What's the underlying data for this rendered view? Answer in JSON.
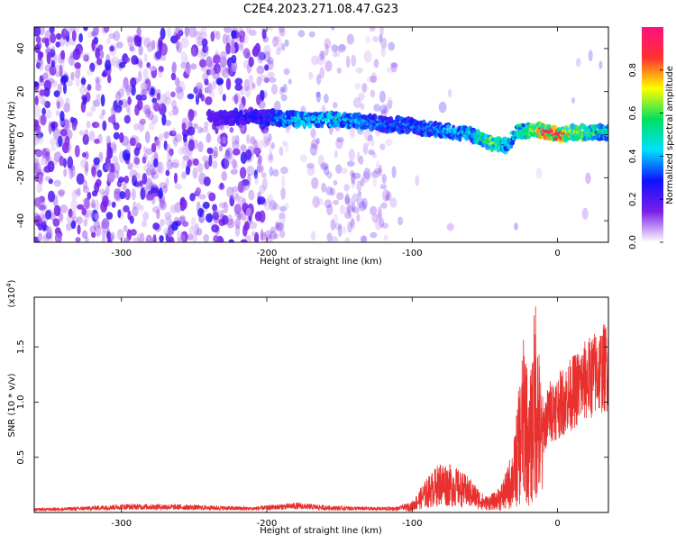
{
  "title": "C2E4.2023.271.08.47.G23",
  "colors": {
    "snr_line": "#e8312e",
    "spectrogram_base": "#7b1fe8"
  },
  "chart_data": [
    {
      "type": "heatmap",
      "xlabel": "Height of straight line (km)",
      "ylabel": "Frequency (Hz)",
      "xlim": [
        -360,
        35
      ],
      "ylim": [
        -50,
        50
      ],
      "x_ticks": [
        "-300",
        "-200",
        "-100",
        "0"
      ],
      "x_tick_values": [
        -300,
        -200,
        -100,
        0
      ],
      "y_ticks": [
        "-40",
        "-20",
        "0",
        "20",
        "40"
      ],
      "y_tick_values": [
        -40,
        -20,
        0,
        20,
        40
      ],
      "colorbar": {
        "label": "Normalized spectral amplitude",
        "range": [
          0,
          1
        ],
        "ticks": [
          "0.0",
          "0.2",
          "0.4",
          "0.6",
          "0.8"
        ],
        "tick_values": [
          0,
          0.2,
          0.4,
          0.6,
          0.8
        ],
        "colormap": [
          "#ffffff",
          "#7b1fe8",
          "#1010ff",
          "#00e0ff",
          "#00e060",
          "#ffff00",
          "#ff3030",
          "#ff1080"
        ]
      },
      "ridge": {
        "x": [
          -235,
          -200,
          -180,
          -150,
          -120,
          -100,
          -80,
          -60,
          -45,
          -35,
          -28,
          -20,
          -10,
          0,
          10,
          20,
          35
        ],
        "y": [
          8,
          8,
          7,
          7,
          5,
          4,
          2,
          0,
          -4,
          -5,
          1,
          2,
          2,
          0,
          1,
          1,
          1
        ],
        "amplitude": [
          0.2,
          0.3,
          0.45,
          0.45,
          0.35,
          0.35,
          0.4,
          0.45,
          0.65,
          0.45,
          0.5,
          0.6,
          0.9,
          0.95,
          0.7,
          0.6,
          0.5
        ]
      }
    },
    {
      "type": "line",
      "xlabel": "Height of straight line (km)",
      "ylabel": "SNR (10 * v/v)",
      "y_multiplier": "(x10",
      "y_multiplier_exp": "4",
      "y_multiplier_close": ")",
      "xlim": [
        -360,
        35
      ],
      "ylim": [
        0,
        1.95
      ],
      "x_ticks": [
        "-300",
        "-200",
        "-100",
        "0"
      ],
      "x_tick_values": [
        -300,
        -200,
        -100,
        0
      ],
      "y_ticks": [
        "0.5",
        "1.0",
        "1.5"
      ],
      "y_tick_values": [
        0.5,
        1.0,
        1.5
      ],
      "series": [
        {
          "x": [
            -360,
            -330,
            -300,
            -270,
            -240,
            -210,
            -180,
            -160,
            -130,
            -110,
            -100,
            -90,
            -80,
            -70,
            -60,
            -50,
            -42,
            -35,
            -30,
            -25,
            -22,
            -20,
            -17,
            -15,
            -12,
            -10,
            -5,
            0,
            10,
            20,
            30,
            35
          ],
          "y": [
            0.03,
            0.04,
            0.06,
            0.06,
            0.05,
            0.04,
            0.07,
            0.05,
            0.04,
            0.04,
            0.08,
            0.25,
            0.38,
            0.33,
            0.25,
            0.12,
            0.15,
            0.35,
            0.6,
            1.25,
            1.6,
            0.9,
            1.45,
            1.9,
            1.2,
            0.95,
            1.15,
            1.2,
            1.35,
            1.5,
            1.62,
            1.66
          ]
        }
      ]
    }
  ]
}
